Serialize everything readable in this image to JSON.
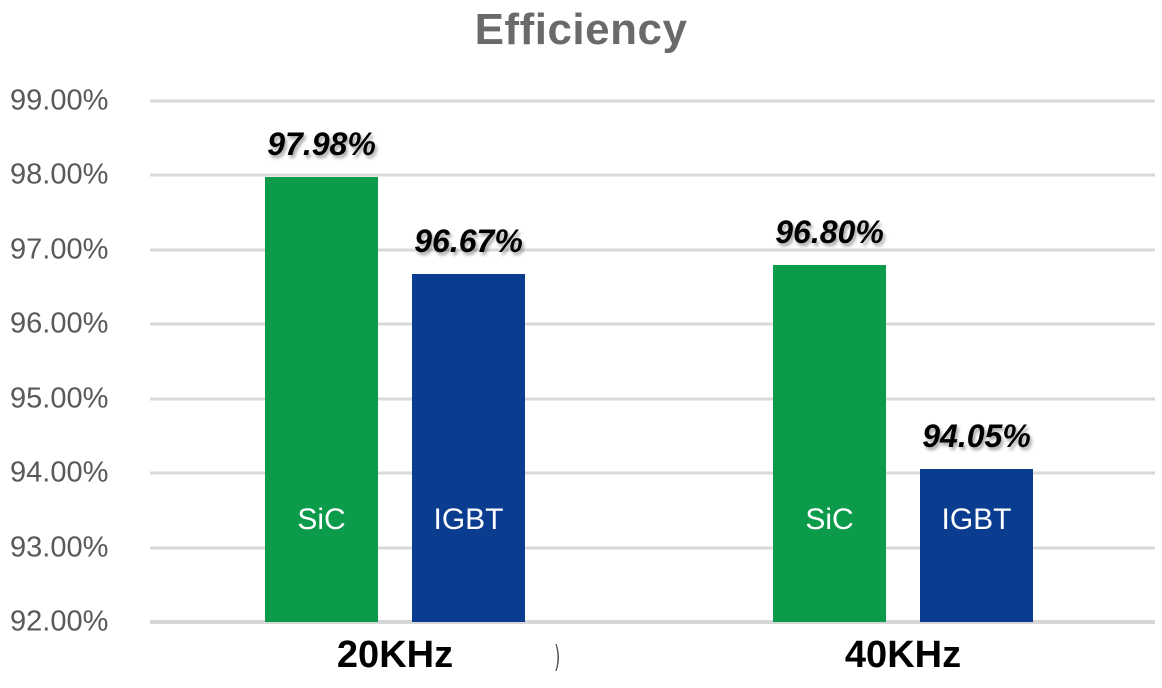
{
  "title": "Efficiency",
  "stray_mark": ")",
  "colors": {
    "sic_bar": "#0C9B4B",
    "igbt_bar": "#0A3D8F",
    "gridline": "#D9D9D9",
    "axis_text": "#595959",
    "title_text": "#6A6A6A",
    "value_label_text": "#000000",
    "in_bar_text": "#FFFFFF",
    "category_text": "#000000",
    "background": "#FFFFFF"
  },
  "chart_data": {
    "type": "bar",
    "title": "Efficiency",
    "categories": [
      "20KHz",
      "40KHz"
    ],
    "series": [
      {
        "name": "SiC",
        "color": "#0C9B4B",
        "values": [
          97.98,
          96.8
        ],
        "labels": [
          "97.98%",
          "96.80%"
        ]
      },
      {
        "name": "IGBT",
        "color": "#0A3D8F",
        "values": [
          96.67,
          94.05
        ],
        "labels": [
          "96.67%",
          "94.05%"
        ]
      }
    ],
    "xlabel": "",
    "ylabel": "",
    "ylim": [
      92,
      99
    ],
    "ytick_step": 1,
    "yticks": [
      "99.00%",
      "98.00%",
      "97.00%",
      "96.00%",
      "95.00%",
      "94.00%",
      "93.00%",
      "92.00%"
    ],
    "grid": true,
    "legend_position": "none",
    "series_names_shown_inside_bars": true,
    "value_labels_above_bars": true
  }
}
